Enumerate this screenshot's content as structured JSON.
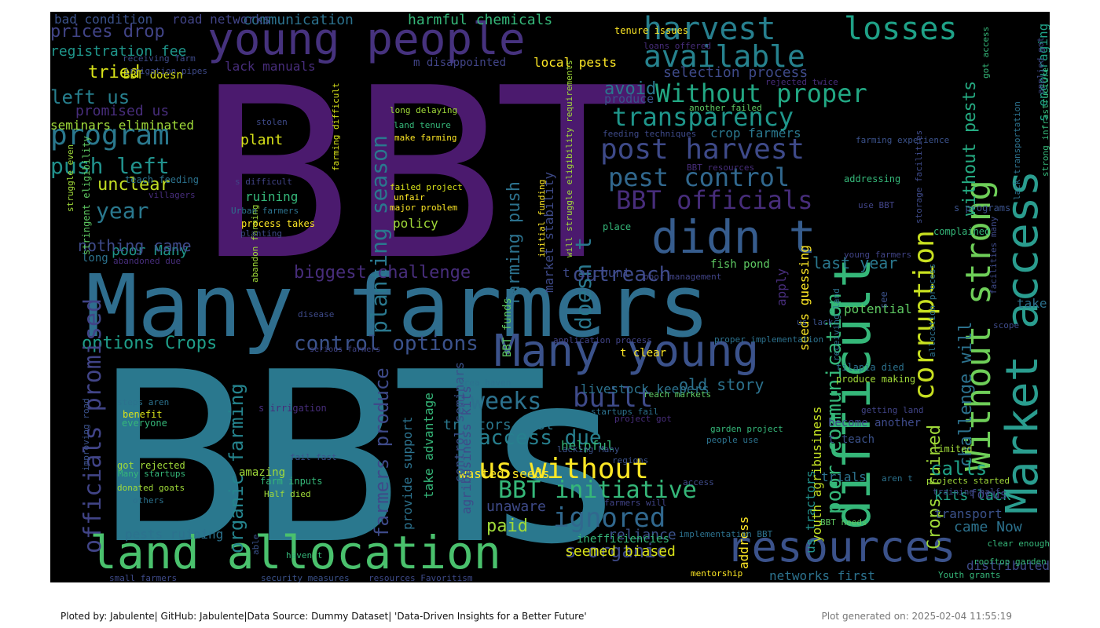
{
  "footer": {
    "credit": "Ploted by: Jabulente| GitHub: Jabulente|Data Source: Dummy Dataset| 'Data-Driven Insights for a Better Future'",
    "generated": "Plot generated on: 2025-02-04 11:55:19"
  },
  "palette": [
    "#440154",
    "#46327e",
    "#365c8d",
    "#277f8e",
    "#1fa187",
    "#4ac16d",
    "#a0da39",
    "#fde725"
  ],
  "words": [
    {
      "text": "BBT",
      "color": "#4b1a6e",
      "rot": 0
    },
    {
      "text": "BBTs",
      "color": "#2a788e",
      "rot": 0
    },
    {
      "text": "Many farmers",
      "color": "#2f6e8e",
      "rot": 0
    },
    {
      "text": "young people",
      "color": "#46327e",
      "rot": 0
    },
    {
      "text": "difficult",
      "color": "#35b779",
      "rot": 90
    },
    {
      "text": "Market access",
      "color": "#2a9d8f",
      "rot": 90
    },
    {
      "text": "Without strong",
      "color": "#6ece58",
      "rot": 90
    },
    {
      "text": "corruption",
      "color": "#c8e020",
      "rot": 90
    },
    {
      "text": "land allocation",
      "color": "#4ac16d",
      "rot": 0
    },
    {
      "text": "resources",
      "color": "#3b528b",
      "rot": 0
    },
    {
      "text": "Many young",
      "color": "#3b528b",
      "rot": 0
    },
    {
      "text": "didn t",
      "color": "#365c8d",
      "rot": 0
    },
    {
      "text": "harvest",
      "color": "#277f8e",
      "rot": 0
    },
    {
      "text": "losses",
      "color": "#1fa187",
      "rot": 0
    },
    {
      "text": "available",
      "color": "#26828e",
      "rot": 0
    },
    {
      "text": "Without proper",
      "color": "#22a884",
      "rot": 0
    },
    {
      "text": "transparency",
      "color": "#1f968b",
      "rot": 0
    },
    {
      "text": "post harvest",
      "color": "#3e4a89",
      "rot": 0
    },
    {
      "text": "pest control",
      "color": "#31688e",
      "rot": 0
    },
    {
      "text": "BBT officials",
      "color": "#472d7b",
      "rot": 0
    },
    {
      "text": "program",
      "color": "#2a788e",
      "rot": 0
    },
    {
      "text": "push left",
      "color": "#21918c",
      "rot": 0
    },
    {
      "text": "us without",
      "color": "#fde725",
      "rot": 0
    },
    {
      "text": "BBT initiative",
      "color": "#35b779",
      "rot": 0
    },
    {
      "text": "built",
      "color": "#3e4a89",
      "rot": 0
    },
    {
      "text": "weeks",
      "color": "#2c728e",
      "rot": 0
    },
    {
      "text": "access due",
      "color": "#277f8e",
      "rot": 0
    },
    {
      "text": "ignored",
      "color": "#31688e",
      "rot": 0
    },
    {
      "text": "outreach",
      "color": "#3e4a89",
      "rot": 0
    },
    {
      "text": "control options",
      "color": "#3b528b",
      "rot": 0
    },
    {
      "text": "options Crops",
      "color": "#1f9e89",
      "rot": 0
    },
    {
      "text": "planting season",
      "color": "#2a788e",
      "rot": 90
    },
    {
      "text": "officials promised",
      "color": "#414487",
      "rot": 90
    },
    {
      "text": "organic farming",
      "color": "#25848e",
      "rot": 90
    },
    {
      "text": "farmers produce",
      "color": "#3e4a89",
      "rot": 90
    },
    {
      "text": "farming push",
      "color": "#2c728e",
      "rot": 90
    },
    {
      "text": "doesn t",
      "color": "#2a788e",
      "rot": 90
    },
    {
      "text": "poor communication",
      "color": "#35b779",
      "rot": 90
    },
    {
      "text": "Crops ruined",
      "color": "#a0da39",
      "rot": 90
    },
    {
      "text": "challenge will",
      "color": "#2c728e",
      "rot": 90
    },
    {
      "text": "without pests",
      "color": "#25ab82",
      "rot": 90
    },
    {
      "text": "biggest challenge",
      "color": "#472d7b",
      "rot": 0
    },
    {
      "text": "calls",
      "color": "#1fa187",
      "rot": 0
    },
    {
      "text": "avoid",
      "color": "#2a788e",
      "rot": 0
    },
    {
      "text": "prices drop",
      "color": "#414487",
      "rot": 0
    },
    {
      "text": "registration fee",
      "color": "#1f968b",
      "rot": 0
    },
    {
      "text": "tried",
      "color": "#d8e219",
      "rot": 0
    },
    {
      "text": "left us",
      "color": "#277f8e",
      "rot": 0
    },
    {
      "text": "unclear",
      "color": "#c2df23",
      "rot": 0
    },
    {
      "text": "year",
      "color": "#2a788e",
      "rot": 0
    },
    {
      "text": "old story",
      "color": "#2c728e",
      "rot": 0
    },
    {
      "text": "last year",
      "color": "#2a788e",
      "rot": 0
    },
    {
      "text": "selection process",
      "color": "#3e4a89",
      "rot": 0
    },
    {
      "text": "s organic",
      "color": "#3e4a89",
      "rot": 0
    },
    {
      "text": "came Now",
      "color": "#2c728e",
      "rot": 0
    },
    {
      "text": "paid",
      "color": "#a0da39",
      "rot": 0
    },
    {
      "text": "reliance",
      "color": "#3b528b",
      "rot": 0
    },
    {
      "text": "seemed biased",
      "color": "#d8e219",
      "rot": 0
    },
    {
      "text": "helpful",
      "color": "#35b779",
      "rot": 0
    },
    {
      "text": "wasted seeds",
      "color": "#fde725",
      "rot": 0
    },
    {
      "text": "tractors last",
      "color": "#2a788e",
      "rot": 0
    },
    {
      "text": "unaware",
      "color": "#3e4a89",
      "rot": 0
    },
    {
      "text": "pests ruining",
      "color": "#2c728e",
      "rot": 0
    },
    {
      "text": "poor Many",
      "color": "#1f968b",
      "rot": 0
    },
    {
      "text": "nothing came",
      "color": "#3e4a89",
      "rot": 0
    },
    {
      "text": "communication",
      "color": "#2c728e",
      "rot": 0
    },
    {
      "text": "harmful chemicals",
      "color": "#35b779",
      "rot": 0
    },
    {
      "text": "local pests",
      "color": "#fde725",
      "rot": 0
    },
    {
      "text": "promised us",
      "color": "#472d7b",
      "rot": 0
    },
    {
      "text": "seminars eliminated",
      "color": "#a0da39",
      "rot": 0
    },
    {
      "text": "bad condition",
      "color": "#3b528b",
      "rot": 0
    },
    {
      "text": "road networks",
      "color": "#414487",
      "rot": 0
    },
    {
      "text": "m disappointed",
      "color": "#414487",
      "rot": 0
    },
    {
      "text": "lack manuals",
      "color": "#472d7b",
      "rot": 0
    },
    {
      "text": "BBT doesn",
      "color": "#d8e219",
      "rot": 0
    },
    {
      "text": "plant",
      "color": "#d8e219",
      "rot": 0
    },
    {
      "text": "ruining",
      "color": "#35b779",
      "rot": 0
    },
    {
      "text": "policy",
      "color": "#a0da39",
      "rot": 0
    },
    {
      "text": "fish pond",
      "color": "#5ec962",
      "rot": 0
    },
    {
      "text": "produce",
      "color": "#3b528b",
      "rot": 0
    },
    {
      "text": "crop farmers",
      "color": "#2a788e",
      "rot": 0
    },
    {
      "text": "apply",
      "color": "#472d7b",
      "rot": 90
    },
    {
      "text": "seeds guessing",
      "color": "#fde725",
      "rot": 90
    },
    {
      "text": "market stability",
      "color": "#3e4a89",
      "rot": 90
    },
    {
      "text": "control seminars",
      "color": "#3b528b",
      "rot": 90
    },
    {
      "text": "take advantage",
      "color": "#35b779",
      "rot": 90
    },
    {
      "text": "provide support",
      "color": "#2c728e",
      "rot": 90
    },
    {
      "text": "agribusiness kits",
      "color": "#3e4a89",
      "rot": 90
    },
    {
      "text": "us tractors",
      "color": "#21918c",
      "rot": 90
    },
    {
      "text": "youth agribusiness",
      "color": "#c2df23",
      "rot": 90
    },
    {
      "text": "s encouraging",
      "color": "#1fa187",
      "rot": 90
    },
    {
      "text": "t account",
      "color": "#3e4a89",
      "rot": 0
    },
    {
      "text": "livestock keepers",
      "color": "#2c728e",
      "rot": 0
    },
    {
      "text": "BBT funds",
      "color": "#5ec962",
      "rot": 90
    },
    {
      "text": "potential",
      "color": "#5ec962",
      "rot": 0
    },
    {
      "text": "trials",
      "color": "#2c728e",
      "rot": 0
    },
    {
      "text": "kits lack",
      "color": "#1fa187",
      "rot": 0
    },
    {
      "text": "transport",
      "color": "#3b528b",
      "rot": 0
    },
    {
      "text": "focus",
      "color": "#414487",
      "rot": 0
    },
    {
      "text": "take",
      "color": "#2c728e",
      "rot": 0
    },
    {
      "text": "distributed",
      "color": "#3e4a89",
      "rot": 0
    },
    {
      "text": "networks first",
      "color": "#2c728e",
      "rot": 0
    },
    {
      "text": "long",
      "color": "#2c728e",
      "rot": 0
    },
    {
      "text": "amazing",
      "color": "#a0da39",
      "rot": 0
    },
    {
      "text": "inefficiencies",
      "color": "#35b779",
      "rot": 0
    },
    {
      "text": "t teach",
      "color": "#3b528b",
      "rot": 0
    },
    {
      "text": "become another",
      "color": "#3e4a89",
      "rot": 0
    },
    {
      "text": "produce making",
      "color": "#a0da39",
      "rot": 0
    },
    {
      "text": "address",
      "color": "#fde725",
      "rot": 90
    },
    {
      "text": "tenure issues",
      "color": "#fde725",
      "rot": 0
    },
    {
      "text": "loans offered",
      "color": "#472d7b",
      "rot": 0
    },
    {
      "text": "another failed",
      "color": "#5ec962",
      "rot": 0
    },
    {
      "text": "rejected twice",
      "color": "#472d7b",
      "rot": 0
    },
    {
      "text": "feeding techniques",
      "color": "#3e4a89",
      "rot": 0
    },
    {
      "text": "BBT resources",
      "color": "#472d7b",
      "rot": 0
    },
    {
      "text": "farming experience",
      "color": "#3b528b",
      "rot": 0
    },
    {
      "text": "addressing",
      "color": "#35b779",
      "rot": 0
    },
    {
      "text": "use BBT",
      "color": "#414487",
      "rot": 0
    },
    {
      "text": "s programs",
      "color": "#3b528b",
      "rot": 0
    },
    {
      "text": "complained",
      "color": "#35b779",
      "rot": 0
    },
    {
      "text": "place",
      "color": "#35b779",
      "rot": 0
    },
    {
      "text": "young farmers",
      "color": "#414487",
      "rot": 0
    },
    {
      "text": "poor management",
      "color": "#414487",
      "rot": 0
    },
    {
      "text": "us lack",
      "color": "#3b528b",
      "rot": 0
    },
    {
      "text": "scope",
      "color": "#3e4a89",
      "rot": 0
    },
    {
      "text": "proper implementation",
      "color": "#2c728e",
      "rot": 0
    },
    {
      "text": "application process",
      "color": "#414487",
      "rot": 0
    },
    {
      "text": "t clear",
      "color": "#fde725",
      "rot": 0
    },
    {
      "text": "reach markets",
      "color": "#5ec962",
      "rot": 0
    },
    {
      "text": "tilapia died",
      "color": "#2c728e",
      "rot": 0
    },
    {
      "text": "garden project",
      "color": "#35b779",
      "rot": 0
    },
    {
      "text": "people use",
      "color": "#2c728e",
      "rot": 0
    },
    {
      "text": "getting land",
      "color": "#414487",
      "rot": 0
    },
    {
      "text": "limited",
      "color": "#a0da39",
      "rot": 0
    },
    {
      "text": "aren t",
      "color": "#2c728e",
      "rot": 0
    },
    {
      "text": "projects started",
      "color": "#a0da39",
      "rot": 0
    },
    {
      "text": "training half",
      "color": "#3e4a89",
      "rot": 0
    },
    {
      "text": "regions",
      "color": "#3b528b",
      "rot": 0
    },
    {
      "text": "access",
      "color": "#3e4a89",
      "rot": 0
    },
    {
      "text": "farmers will",
      "color": "#414487",
      "rot": 0
    },
    {
      "text": "lacking Many",
      "color": "#3b528b",
      "rot": 0
    },
    {
      "text": "startups fail",
      "color": "#2c728e",
      "rot": 0
    },
    {
      "text": "project got",
      "color": "#472d7b",
      "rot": 0
    },
    {
      "text": "area haven",
      "color": "#2c728e",
      "rot": 0
    },
    {
      "text": "implementation BBT",
      "color": "#2c728e",
      "rot": 0
    },
    {
      "text": "BBT needs",
      "color": "#5ec962",
      "rot": 0
    },
    {
      "text": "clear enough",
      "color": "#35b779",
      "rot": 0
    },
    {
      "text": "rooftop garden",
      "color": "#35b779",
      "rot": 0
    },
    {
      "text": "Youth grants",
      "color": "#35b779",
      "rot": 0
    },
    {
      "text": "mentorship",
      "color": "#fde725",
      "rot": 0
    },
    {
      "text": "security measures",
      "color": "#3b528b",
      "rot": 0
    },
    {
      "text": "resources Favoritism",
      "color": "#3e4a89",
      "rot": 0
    },
    {
      "text": "small farmers",
      "color": "#3e4a89",
      "rot": 0
    },
    {
      "text": "haven t",
      "color": "#35b779",
      "rot": 0
    },
    {
      "text": "able",
      "color": "#3b528b",
      "rot": 90
    },
    {
      "text": "got rejected",
      "color": "#a0da39",
      "rot": 0
    },
    {
      "text": "Many startups",
      "color": "#35b779",
      "rot": 0
    },
    {
      "text": "donated goats",
      "color": "#a0da39",
      "rot": 0
    },
    {
      "text": "others",
      "color": "#2c728e",
      "rot": 0
    },
    {
      "text": "fail fast",
      "color": "#3b528b",
      "rot": 0
    },
    {
      "text": "farm inputs",
      "color": "#35b779",
      "rot": 0
    },
    {
      "text": "Half died",
      "color": "#a0da39",
      "rot": 0
    },
    {
      "text": "benefit",
      "color": "#d8e219",
      "rot": 0
    },
    {
      "text": "everyone",
      "color": "#35b779",
      "rot": 0
    },
    {
      "text": "steps aren",
      "color": "#2c728e",
      "rot": 0
    },
    {
      "text": "s irrigation",
      "color": "#472d7b",
      "rot": 0
    },
    {
      "text": "serious farmers",
      "color": "#414487",
      "rot": 0
    },
    {
      "text": "disease",
      "color": "#3e4a89",
      "rot": 0
    },
    {
      "text": "abandon farming",
      "color": "#a0da39",
      "rot": 90
    },
    {
      "text": "improving road",
      "color": "#3b528b",
      "rot": 90
    },
    {
      "text": "stringent eligibility",
      "color": "#5ec962",
      "rot": 90
    },
    {
      "text": "abandoned due",
      "color": "#472d7b",
      "rot": 0
    },
    {
      "text": "Urban farmers",
      "color": "#2c728e",
      "rot": 0
    },
    {
      "text": "process takes",
      "color": "#fde725",
      "rot": 0
    },
    {
      "text": "planting",
      "color": "#3e4a89",
      "rot": 0
    },
    {
      "text": "s difficult",
      "color": "#414487",
      "rot": 0
    },
    {
      "text": "teach feeding",
      "color": "#2c728e",
      "rot": 0
    },
    {
      "text": "villagers",
      "color": "#472d7b",
      "rot": 0
    },
    {
      "text": "struggle even",
      "color": "#a0da39",
      "rot": 90
    },
    {
      "text": "irrigation pipes",
      "color": "#3e4a89",
      "rot": 0
    },
    {
      "text": "receiving farm",
      "color": "#3e4a89",
      "rot": 0
    },
    {
      "text": "stolen",
      "color": "#3e4a89",
      "rot": 0
    },
    {
      "text": "farming difficult",
      "color": "#d8e219",
      "rot": 90
    },
    {
      "text": "long delaying",
      "color": "#a0da39",
      "rot": 0
    },
    {
      "text": "land tenure",
      "color": "#35b779",
      "rot": 0
    },
    {
      "text": "make farming",
      "color": "#fde725",
      "rot": 0
    },
    {
      "text": "failed project",
      "color": "#d8e219",
      "rot": 0
    },
    {
      "text": "unfair",
      "color": "#fde725",
      "rot": 0
    },
    {
      "text": "major problem",
      "color": "#fde725",
      "rot": 0
    },
    {
      "text": "initial funding",
      "color": "#fde725",
      "rot": 90
    },
    {
      "text": "will struggle eligibility requirements",
      "color": "#a0da39",
      "rot": 90
    },
    {
      "text": "applied got",
      "color": "#3e4a89",
      "rot": 90
    },
    {
      "text": "got access",
      "color": "#35b779",
      "rot": 90
    },
    {
      "text": "strong infrastructure",
      "color": "#35b779",
      "rot": 90
    },
    {
      "text": "storage facilities",
      "color": "#3e4a89",
      "rot": 90
    },
    {
      "text": "lack transportation",
      "color": "#2c728e",
      "rot": 90
    },
    {
      "text": "facilities many",
      "color": "#3e4a89",
      "rot": 90
    },
    {
      "text": "allocation process",
      "color": "#2c728e",
      "rot": 90
    },
    {
      "text": "receiving land",
      "color": "#2c728e",
      "rot": 90
    },
    {
      "text": "see",
      "color": "#3b528b",
      "rot": 90
    }
  ]
}
